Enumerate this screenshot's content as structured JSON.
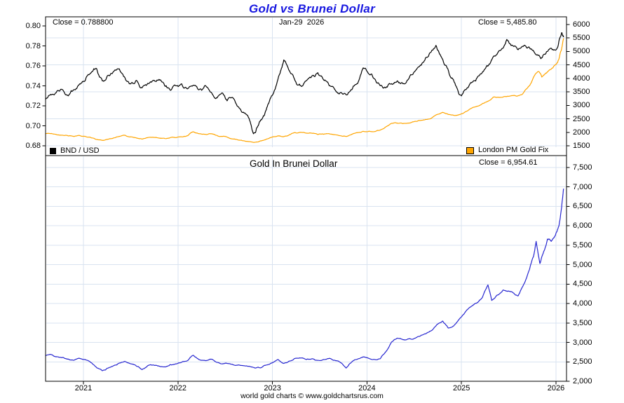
{
  "title": "Gold vs Brunei Dollar",
  "footer": "world gold charts © www.goldchartsrus.com",
  "colors": {
    "title_blue": "#1717e0",
    "bnd_line": "#000000",
    "gold_line": "#ffa500",
    "gold_bnd_line": "#2626d0",
    "grid": "#d9e3f0",
    "axis": "#000000"
  },
  "top_panel": {
    "close_left": "Close = 0.788800",
    "date_label": "Jan-29  2026",
    "close_right": "Close = 5,485.80",
    "legend": [
      {
        "label": "BND / USD",
        "color_key": "bnd_line"
      },
      {
        "label": "London PM Gold Fix",
        "color_key": "gold_line"
      }
    ]
  },
  "bottom_panel": {
    "title": "Gold In Brunei Dollar",
    "close_label": "Close = 6,954.61"
  },
  "axes": {
    "x": {
      "values": [
        2021,
        2022,
        2023,
        2024,
        2025,
        2026
      ],
      "labels": [
        "2021",
        "2022",
        "2023",
        "2024",
        "2025",
        "2026"
      ],
      "range": [
        2020.6,
        2026.11
      ]
    },
    "top_left": {
      "values": [
        0.8,
        0.78,
        0.76,
        0.74,
        0.72,
        0.7,
        0.68
      ],
      "labels": [
        "0.80",
        "0.78",
        "0.76",
        "0.74",
        "0.72",
        "0.70",
        "0.68"
      ]
    },
    "top_right": {
      "values": [
        6000,
        5500,
        5000,
        4500,
        4000,
        3500,
        3000,
        2500,
        2000,
        1500
      ],
      "labels": [
        "6000",
        "5500",
        "5000",
        "4500",
        "4000",
        "3500",
        "3000",
        "2500",
        "2000",
        "1500"
      ]
    },
    "bottom_right": {
      "values": [
        7500,
        7000,
        6500,
        6000,
        5500,
        5000,
        4500,
        4000,
        3500,
        3000,
        2500,
        2000
      ],
      "labels": [
        "7,500",
        "7,000",
        "6,500",
        "6,000",
        "5,500",
        "5,000",
        "4,500",
        "4,000",
        "3,500",
        "3,000",
        "2,500",
        "2,000"
      ]
    },
    "top_hgrid": [
      5500,
      4500,
      3500,
      2500,
      1500
    ],
    "bottom_hgrid": [
      7500,
      7000,
      6500,
      6000,
      5500,
      5000,
      4500,
      4000,
      3500,
      3000,
      2500
    ],
    "grid_on": true
  },
  "chart_data": [
    {
      "type": "line",
      "name": "BND / USD",
      "panel": "top",
      "y_axis": "left",
      "ylim": [
        0.68,
        0.8
      ],
      "close": 0.7888,
      "color_key": "bnd_line",
      "points": [
        [
          2020.6,
          0.7265
        ],
        [
          2020.66,
          0.731
        ],
        [
          2020.72,
          0.7348
        ],
        [
          2020.78,
          0.7362
        ],
        [
          2020.84,
          0.73
        ],
        [
          2020.9,
          0.7362
        ],
        [
          2020.96,
          0.742
        ],
        [
          2021.02,
          0.7455
        ],
        [
          2021.08,
          0.753
        ],
        [
          2021.14,
          0.7572
        ],
        [
          2021.2,
          0.745
        ],
        [
          2021.26,
          0.7505
        ],
        [
          2021.32,
          0.7545
        ],
        [
          2021.38,
          0.757
        ],
        [
          2021.44,
          0.748
        ],
        [
          2021.5,
          0.742
        ],
        [
          2021.56,
          0.7455
        ],
        [
          2021.62,
          0.738
        ],
        [
          2021.68,
          0.7425
        ],
        [
          2021.74,
          0.7455
        ],
        [
          2021.8,
          0.7465
        ],
        [
          2021.86,
          0.74
        ],
        [
          2021.92,
          0.7355
        ],
        [
          2021.98,
          0.74
        ],
        [
          2022.04,
          0.742
        ],
        [
          2022.1,
          0.737
        ],
        [
          2022.16,
          0.7405
        ],
        [
          2022.22,
          0.736
        ],
        [
          2022.28,
          0.7398
        ],
        [
          2022.34,
          0.734
        ],
        [
          2022.4,
          0.7272
        ],
        [
          2022.46,
          0.7325
        ],
        [
          2022.52,
          0.725
        ],
        [
          2022.58,
          0.7282
        ],
        [
          2022.64,
          0.719
        ],
        [
          2022.7,
          0.7128
        ],
        [
          2022.76,
          0.705
        ],
        [
          2022.8,
          0.692
        ],
        [
          2022.84,
          0.6985
        ],
        [
          2022.88,
          0.706
        ],
        [
          2022.92,
          0.7125
        ],
        [
          2022.96,
          0.7225
        ],
        [
          2023.02,
          0.7355
        ],
        [
          2023.08,
          0.7525
        ],
        [
          2023.12,
          0.766
        ],
        [
          2023.18,
          0.755
        ],
        [
          2023.24,
          0.745
        ],
        [
          2023.3,
          0.7402
        ],
        [
          2023.36,
          0.7452
        ],
        [
          2023.42,
          0.7502
        ],
        [
          2023.48,
          0.7532
        ],
        [
          2023.54,
          0.7462
        ],
        [
          2023.6,
          0.7402
        ],
        [
          2023.66,
          0.7362
        ],
        [
          2023.72,
          0.7332
        ],
        [
          2023.78,
          0.731
        ],
        [
          2023.84,
          0.7362
        ],
        [
          2023.9,
          0.7422
        ],
        [
          2023.96,
          0.758
        ],
        [
          2024.02,
          0.752
        ],
        [
          2024.08,
          0.747
        ],
        [
          2024.14,
          0.7402
        ],
        [
          2024.2,
          0.738
        ],
        [
          2024.26,
          0.7422
        ],
        [
          2024.32,
          0.745
        ],
        [
          2024.38,
          0.7422
        ],
        [
          2024.44,
          0.7468
        ],
        [
          2024.5,
          0.754
        ],
        [
          2024.56,
          0.76
        ],
        [
          2024.62,
          0.768
        ],
        [
          2024.68,
          0.774
        ],
        [
          2024.73,
          0.7805
        ],
        [
          2024.78,
          0.77
        ],
        [
          2024.84,
          0.76
        ],
        [
          2024.9,
          0.748
        ],
        [
          2024.96,
          0.736
        ],
        [
          2025.0,
          0.73
        ],
        [
          2025.06,
          0.738
        ],
        [
          2025.12,
          0.744
        ],
        [
          2025.18,
          0.75
        ],
        [
          2025.24,
          0.756
        ],
        [
          2025.3,
          0.762
        ],
        [
          2025.36,
          0.77
        ],
        [
          2025.42,
          0.7762
        ],
        [
          2025.48,
          0.7865
        ],
        [
          2025.54,
          0.7805
        ],
        [
          2025.6,
          0.7762
        ],
        [
          2025.66,
          0.7802
        ],
        [
          2025.72,
          0.7782
        ],
        [
          2025.78,
          0.7722
        ],
        [
          2025.84,
          0.7672
        ],
        [
          2025.9,
          0.7742
        ],
        [
          2025.96,
          0.7762
        ],
        [
          2026.02,
          0.7792
        ],
        [
          2026.06,
          0.7932
        ],
        [
          2026.08,
          0.7888
        ]
      ]
    },
    {
      "type": "line",
      "name": "London PM Gold Fix",
      "panel": "top",
      "y_axis": "right",
      "ylim": [
        1500,
        6000
      ],
      "close": 5485.8,
      "color_key": "gold_line",
      "points": [
        [
          2020.6,
          1945
        ],
        [
          2020.66,
          1958
        ],
        [
          2020.72,
          1908
        ],
        [
          2020.78,
          1892
        ],
        [
          2020.84,
          1866
        ],
        [
          2020.9,
          1842
        ],
        [
          2020.96,
          1882
        ],
        [
          2021.02,
          1848
        ],
        [
          2021.08,
          1802
        ],
        [
          2021.14,
          1732
        ],
        [
          2021.2,
          1700
        ],
        [
          2021.26,
          1745
        ],
        [
          2021.32,
          1792
        ],
        [
          2021.38,
          1848
        ],
        [
          2021.44,
          1892
        ],
        [
          2021.5,
          1832
        ],
        [
          2021.56,
          1792
        ],
        [
          2021.62,
          1748
        ],
        [
          2021.68,
          1802
        ],
        [
          2021.74,
          1812
        ],
        [
          2021.8,
          1788
        ],
        [
          2021.86,
          1772
        ],
        [
          2021.92,
          1806
        ],
        [
          2021.98,
          1802
        ],
        [
          2022.04,
          1832
        ],
        [
          2022.1,
          1872
        ],
        [
          2022.16,
          2022
        ],
        [
          2022.22,
          1948
        ],
        [
          2022.28,
          1928
        ],
        [
          2022.34,
          1948
        ],
        [
          2022.4,
          1892
        ],
        [
          2022.46,
          1848
        ],
        [
          2022.52,
          1822
        ],
        [
          2022.58,
          1752
        ],
        [
          2022.64,
          1712
        ],
        [
          2022.7,
          1682
        ],
        [
          2022.76,
          1652
        ],
        [
          2022.82,
          1632
        ],
        [
          2022.88,
          1682
        ],
        [
          2022.94,
          1752
        ],
        [
          2023.0,
          1828
        ],
        [
          2023.06,
          1872
        ],
        [
          2023.12,
          1838
        ],
        [
          2023.18,
          1908
        ],
        [
          2023.24,
          1988
        ],
        [
          2023.3,
          2002
        ],
        [
          2023.36,
          1968
        ],
        [
          2023.42,
          1962
        ],
        [
          2023.48,
          1918
        ],
        [
          2023.54,
          1928
        ],
        [
          2023.6,
          1948
        ],
        [
          2023.66,
          1912
        ],
        [
          2023.72,
          1872
        ],
        [
          2023.78,
          1848
        ],
        [
          2023.84,
          1928
        ],
        [
          2023.9,
          1988
        ],
        [
          2023.96,
          2038
        ],
        [
          2024.02,
          2042
        ],
        [
          2024.08,
          2028
        ],
        [
          2024.14,
          2082
        ],
        [
          2024.2,
          2202
        ],
        [
          2024.26,
          2332
        ],
        [
          2024.32,
          2342
        ],
        [
          2024.38,
          2322
        ],
        [
          2024.44,
          2342
        ],
        [
          2024.5,
          2398
        ],
        [
          2024.56,
          2442
        ],
        [
          2024.62,
          2478
        ],
        [
          2024.68,
          2522
        ],
        [
          2024.74,
          2658
        ],
        [
          2024.8,
          2742
        ],
        [
          2024.86,
          2662
        ],
        [
          2024.92,
          2628
        ],
        [
          2024.98,
          2658
        ],
        [
          2025.04,
          2762
        ],
        [
          2025.1,
          2882
        ],
        [
          2025.16,
          2962
        ],
        [
          2025.22,
          3062
        ],
        [
          2025.28,
          3152
        ],
        [
          2025.34,
          3312
        ],
        [
          2025.4,
          3292
        ],
        [
          2025.46,
          3332
        ],
        [
          2025.52,
          3352
        ],
        [
          2025.58,
          3342
        ],
        [
          2025.64,
          3402
        ],
        [
          2025.7,
          3652
        ],
        [
          2025.74,
          3852
        ],
        [
          2025.78,
          4152
        ],
        [
          2025.82,
          4252
        ],
        [
          2025.85,
          4052
        ],
        [
          2025.88,
          4152
        ],
        [
          2025.92,
          4282
        ],
        [
          2025.96,
          4382
        ],
        [
          2026.0,
          4522
        ],
        [
          2026.03,
          4702
        ],
        [
          2026.06,
          5102
        ],
        [
          2026.08,
          5486
        ]
      ]
    },
    {
      "type": "line",
      "name": "Gold In Brunei Dollar",
      "panel": "bottom",
      "y_axis": "right",
      "ylim": [
        2000,
        7500
      ],
      "close": 6954.61,
      "color_key": "gold_bnd_line",
      "points": [
        [
          2020.6,
          2660
        ],
        [
          2020.66,
          2685
        ],
        [
          2020.72,
          2630
        ],
        [
          2020.78,
          2615
        ],
        [
          2020.84,
          2570
        ],
        [
          2020.9,
          2540
        ],
        [
          2020.96,
          2590
        ],
        [
          2021.02,
          2560
        ],
        [
          2021.08,
          2480
        ],
        [
          2021.14,
          2350
        ],
        [
          2021.2,
          2270
        ],
        [
          2021.26,
          2340
        ],
        [
          2021.32,
          2400
        ],
        [
          2021.38,
          2470
        ],
        [
          2021.44,
          2510
        ],
        [
          2021.5,
          2450
        ],
        [
          2021.56,
          2390
        ],
        [
          2021.62,
          2300
        ],
        [
          2021.68,
          2400
        ],
        [
          2021.74,
          2420
        ],
        [
          2021.8,
          2390
        ],
        [
          2021.86,
          2370
        ],
        [
          2021.92,
          2430
        ],
        [
          2021.98,
          2450
        ],
        [
          2022.04,
          2490
        ],
        [
          2022.1,
          2530
        ],
        [
          2022.16,
          2670
        ],
        [
          2022.22,
          2560
        ],
        [
          2022.28,
          2540
        ],
        [
          2022.34,
          2570
        ],
        [
          2022.4,
          2500
        ],
        [
          2022.46,
          2450
        ],
        [
          2022.52,
          2460
        ],
        [
          2022.58,
          2430
        ],
        [
          2022.64,
          2420
        ],
        [
          2022.7,
          2400
        ],
        [
          2022.76,
          2380
        ],
        [
          2022.82,
          2340
        ],
        [
          2022.88,
          2350
        ],
        [
          2022.94,
          2420
        ],
        [
          2023.0,
          2480
        ],
        [
          2023.06,
          2560
        ],
        [
          2023.12,
          2460
        ],
        [
          2023.18,
          2520
        ],
        [
          2023.24,
          2590
        ],
        [
          2023.3,
          2600
        ],
        [
          2023.36,
          2560
        ],
        [
          2023.42,
          2580
        ],
        [
          2023.48,
          2540
        ],
        [
          2023.54,
          2560
        ],
        [
          2023.6,
          2590
        ],
        [
          2023.66,
          2540
        ],
        [
          2023.72,
          2480
        ],
        [
          2023.78,
          2340
        ],
        [
          2023.84,
          2500
        ],
        [
          2023.9,
          2570
        ],
        [
          2023.96,
          2630
        ],
        [
          2024.02,
          2590
        ],
        [
          2024.08,
          2560
        ],
        [
          2024.14,
          2580
        ],
        [
          2024.2,
          2760
        ],
        [
          2024.26,
          3010
        ],
        [
          2024.32,
          3110
        ],
        [
          2024.38,
          3070
        ],
        [
          2024.44,
          3090
        ],
        [
          2024.5,
          3100
        ],
        [
          2024.56,
          3160
        ],
        [
          2024.62,
          3220
        ],
        [
          2024.68,
          3300
        ],
        [
          2024.74,
          3460
        ],
        [
          2024.8,
          3550
        ],
        [
          2024.86,
          3370
        ],
        [
          2024.92,
          3430
        ],
        [
          2024.98,
          3610
        ],
        [
          2025.04,
          3780
        ],
        [
          2025.1,
          3920
        ],
        [
          2025.16,
          4010
        ],
        [
          2025.22,
          4150
        ],
        [
          2025.28,
          4480
        ],
        [
          2025.32,
          4080
        ],
        [
          2025.38,
          4220
        ],
        [
          2025.44,
          4350
        ],
        [
          2025.5,
          4320
        ],
        [
          2025.56,
          4250
        ],
        [
          2025.6,
          4200
        ],
        [
          2025.66,
          4500
        ],
        [
          2025.72,
          4880
        ],
        [
          2025.76,
          5200
        ],
        [
          2025.79,
          5600
        ],
        [
          2025.83,
          5030
        ],
        [
          2025.87,
          5340
        ],
        [
          2025.91,
          5660
        ],
        [
          2025.95,
          5600
        ],
        [
          2025.99,
          5740
        ],
        [
          2026.03,
          5990
        ],
        [
          2026.06,
          6480
        ],
        [
          2026.08,
          6955
        ]
      ]
    }
  ]
}
